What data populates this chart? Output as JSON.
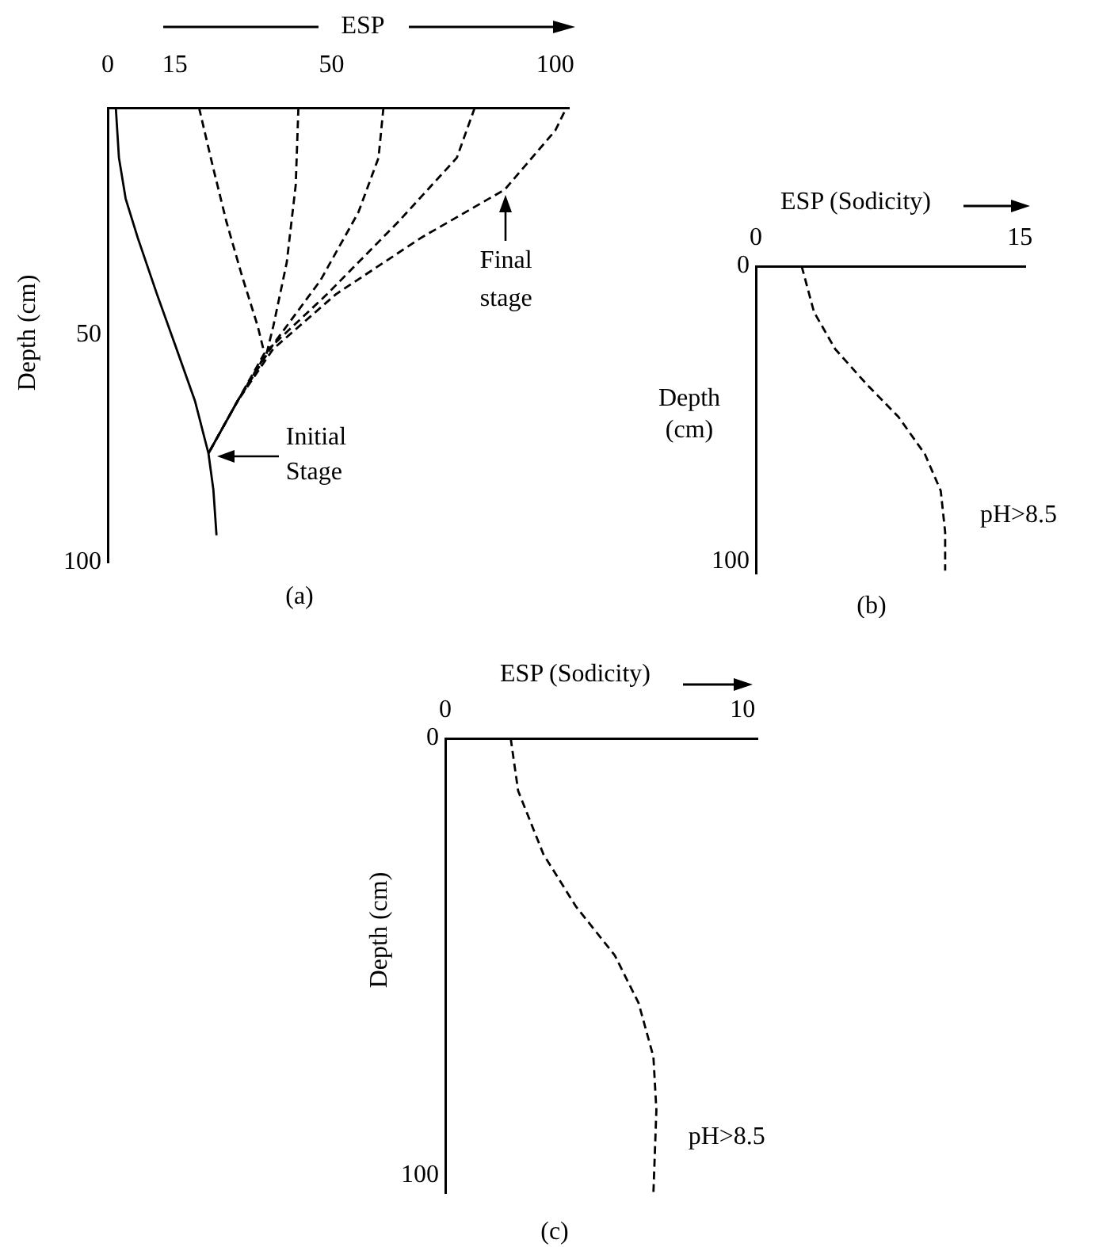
{
  "chart_data": [
    {
      "type": "line",
      "title": "(a)",
      "xlabel": "ESP",
      "ylabel": "Depth (cm)",
      "xlim": [
        0,
        103
      ],
      "xticks": [
        0,
        15,
        50,
        100
      ],
      "ylim": [
        100,
        0
      ],
      "yticks": [
        50,
        100
      ],
      "marker": "none",
      "series": [
        {
          "color": "#000000",
          "line_style": "solid",
          "x": [
            1.8,
            2.5,
            4,
            6.7,
            11,
            15,
            19.5,
            22.5,
            23.6,
            24.3
          ],
          "values": [
            0,
            11,
            20,
            28.6,
            41,
            52,
            64.5,
            76,
            84,
            94
          ]
        },
        {
          "color": "#000000",
          "line_style": "dashed",
          "x": [
            20.4,
            23.5,
            26.5,
            30,
            33.5,
            35,
            29,
            22.5
          ],
          "values": [
            0,
            13,
            25,
            37,
            48,
            54,
            64.5,
            76
          ]
        },
        {
          "color": "#000000",
          "line_style": "dashed",
          "x": [
            42.6,
            42,
            40,
            37,
            35.5,
            29,
            22.5
          ],
          "values": [
            0,
            17,
            34,
            48,
            54,
            64.5,
            76
          ]
        },
        {
          "color": "#000000",
          "line_style": "dashed",
          "x": [
            61.6,
            60.5,
            56,
            47.5,
            37,
            29,
            22.5
          ],
          "values": [
            0,
            11,
            23,
            38,
            52,
            64.5,
            76
          ]
        },
        {
          "color": "#000000",
          "line_style": "dashed",
          "x": [
            82,
            78,
            65,
            49,
            36,
            29,
            22.5
          ],
          "values": [
            0,
            11,
            25,
            41,
            53,
            64.5,
            76
          ]
        },
        {
          "color": "#000000",
          "line_style": "dashed",
          "x": [
            102,
            100,
            88.7,
            70,
            51,
            37,
            29,
            22.5
          ],
          "values": [
            1,
            5,
            18,
            28.6,
            41,
            53,
            64.5,
            76
          ]
        }
      ],
      "annotations": [
        {
          "text": "Initial Stage",
          "x": 23.5,
          "y": 76
        },
        {
          "text": "Final stage",
          "x": 89,
          "y": 18
        }
      ]
    },
    {
      "type": "line",
      "title": "(b)",
      "xlabel": "ESP (Sodicity)",
      "ylabel": "Depth (cm)",
      "xlim": [
        0,
        15.3
      ],
      "xticks": [
        0,
        15
      ],
      "ylim": [
        104,
        0
      ],
      "yticks": [
        0,
        100
      ],
      "marker": "none",
      "series": [
        {
          "name": "pH>8.5",
          "color": "#000000",
          "line_style": "dashed",
          "x": [
            2.6,
            3.3,
            4.5,
            6.3,
            8.1,
            9.6,
            10.5,
            10.75,
            10.75
          ],
          "values": [
            0,
            15.5,
            28,
            40,
            51,
            63.6,
            76,
            90,
            103
          ]
        }
      ]
    },
    {
      "type": "line",
      "title": "(c)",
      "xlabel": "ESP (Sodicity)",
      "ylabel": "Depth (cm)",
      "xlim": [
        0,
        10.5
      ],
      "xticks": [
        0,
        10
      ],
      "ylim": [
        104,
        0
      ],
      "yticks": [
        0,
        100
      ],
      "marker": "none",
      "series": [
        {
          "name": "pH>8.5",
          "color": "#000000",
          "line_style": "dashed",
          "x": [
            2.2,
            2.45,
            3.3,
            4.4,
            5.7,
            6.5,
            7,
            7.1,
            7
          ],
          "values": [
            0,
            12,
            26.5,
            38.5,
            49.6,
            60.5,
            72.8,
            85,
            104
          ]
        }
      ]
    }
  ]
}
